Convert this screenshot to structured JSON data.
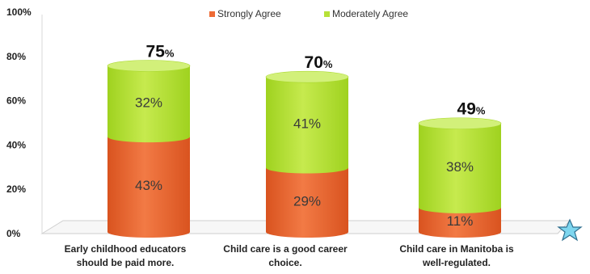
{
  "chart_data": {
    "type": "bar",
    "stacked": true,
    "categories": [
      [
        "Early childhood educators",
        "should be paid more."
      ],
      [
        "Child care is a good career",
        "choice."
      ],
      [
        "Child care in Manitoba is",
        "well-regulated."
      ]
    ],
    "series": [
      {
        "name": "Strongly Agree",
        "color": "#ee6b35",
        "values": [
          43,
          29,
          11
        ]
      },
      {
        "name": "Moderately Agree",
        "color": "#b7e138",
        "values": [
          32,
          41,
          38
        ]
      }
    ],
    "totals": [
      75,
      70,
      49
    ],
    "total_suffix": "%",
    "ylim": [
      0,
      100
    ],
    "yticks": [
      "0%",
      "20%",
      "40%",
      "60%",
      "80%",
      "100%"
    ],
    "ytick_values": [
      0,
      20,
      40,
      60,
      80,
      100
    ],
    "legend_position": "top",
    "grid": false,
    "bar_shape": "cylinder"
  }
}
